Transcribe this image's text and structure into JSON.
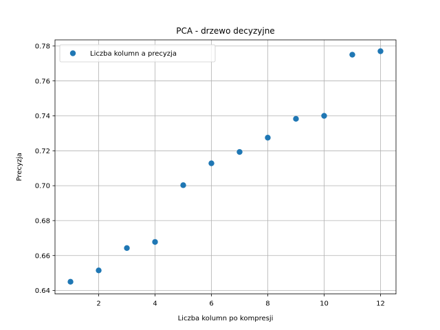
{
  "chart_data": {
    "type": "scatter",
    "title": "PCA - drzewo decyzyjne",
    "xlabel": "Liczba kolumn po kompresji",
    "ylabel": "Precyzja",
    "xlim": [
      0.45,
      12.55
    ],
    "ylim": [
      0.638,
      0.7835
    ],
    "xticks": [
      2,
      4,
      6,
      8,
      10,
      12
    ],
    "yticks": [
      0.64,
      0.66,
      0.68,
      0.7,
      0.72,
      0.74,
      0.76,
      0.78
    ],
    "ytick_labels": [
      "0.64",
      "0.66",
      "0.68",
      "0.70",
      "0.72",
      "0.74",
      "0.76",
      "0.78"
    ],
    "grid": true,
    "legend_position": "top-left",
    "series": [
      {
        "name": "Liczba kolumn a precyzja",
        "color": "#1f77b4",
        "x": [
          1,
          2,
          3,
          4,
          5,
          6,
          7,
          8,
          9,
          10,
          11,
          12
        ],
        "y": [
          0.645,
          0.6515,
          0.6643,
          0.6678,
          0.7003,
          0.7128,
          0.7193,
          0.7275,
          0.7383,
          0.74,
          0.775,
          0.777
        ]
      }
    ]
  }
}
